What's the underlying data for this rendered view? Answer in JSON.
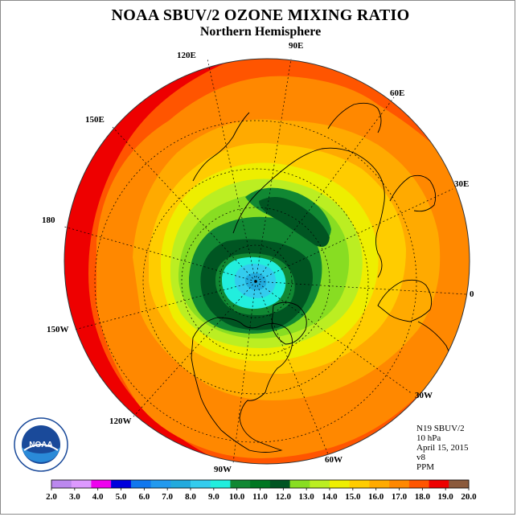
{
  "title": "NOAA SBUV/2 OZONE MIXING RATIO",
  "subtitle": "Northern Hemisphere",
  "longitude_labels": [
    "90E",
    "120E",
    "60E",
    "150E",
    "30E",
    "180",
    "0",
    "150W",
    "30W",
    "120W",
    "60W",
    "90W"
  ],
  "info": {
    "instrument": "N19 SBUV/2",
    "level": "10 hPa",
    "date": "April 15, 2015",
    "version": "v8",
    "units": "PPM"
  },
  "logo": {
    "text": "NOAA",
    "ring_text": "NATIONAL OCEANIC AND ATMOSPHERIC ADMINISTRATION · U.S. DEPARTMENT OF COMMERCE",
    "icon": "noaa-logo-icon"
  },
  "colorbar": {
    "ticks": [
      "2.0",
      "3.0",
      "4.0",
      "5.0",
      "6.0",
      "7.0",
      "8.0",
      "9.0",
      "10.0",
      "11.0",
      "12.0",
      "13.0",
      "14.0",
      "15.0",
      "16.0",
      "17.0",
      "18.0",
      "19.0",
      "20.0"
    ],
    "colors": [
      "#bb88ee",
      "#dd99ff",
      "#ee00ee",
      "#0000dd",
      "#1177ee",
      "#2299ee",
      "#22aadd",
      "#33ccee",
      "#22eedd",
      "#118833",
      "#007722",
      "#005522",
      "#88dd22",
      "#bbee22",
      "#eeee00",
      "#ffcc00",
      "#ffaa00",
      "#ff8800",
      "#ff5500",
      "#ee0000",
      "#8b5a3c"
    ]
  }
}
